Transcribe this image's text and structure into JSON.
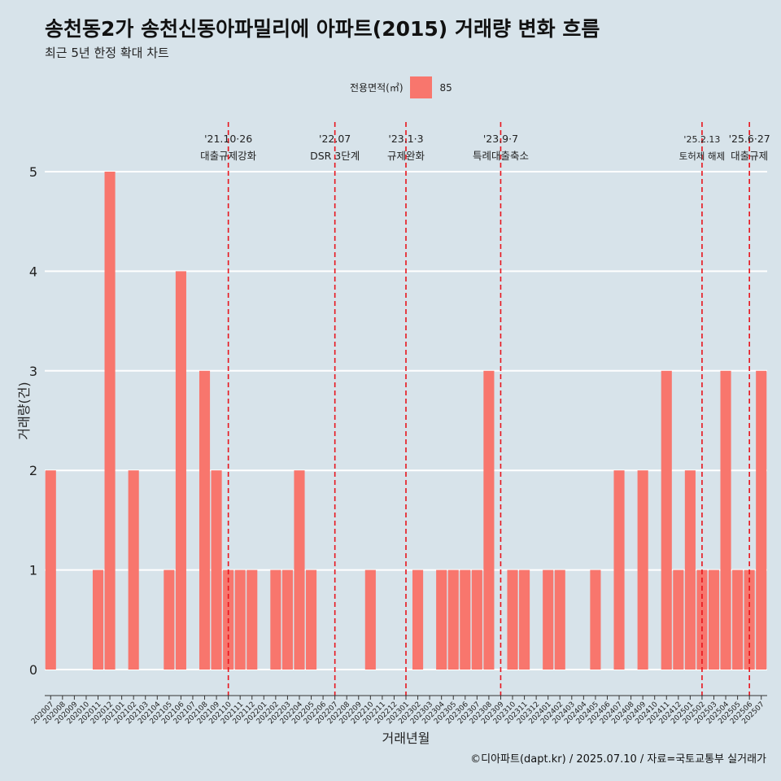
{
  "title": "송천동2가 송천신동아파밀리에 아파트(2015) 거래량 변화 흐름",
  "subtitle": "최근 5년 한정 확대 차트",
  "legend": {
    "title": "전용면적(㎡)",
    "items": [
      {
        "label": "85",
        "color": "#f8766d"
      }
    ]
  },
  "footer": "©디아파트(dapt.kr) / 2025.07.10 / 자료=국토교통부 실거래가",
  "chart_data": {
    "type": "bar",
    "xlabel": "거래년월",
    "ylabel": "거래량(건)",
    "ylim": [
      0,
      5
    ],
    "yticks": [
      0,
      1,
      2,
      3,
      4,
      5
    ],
    "bar_color": "#f8766d",
    "categories": [
      "202007",
      "202008",
      "202009",
      "202010",
      "202011",
      "202012",
      "202101",
      "202102",
      "202103",
      "202104",
      "202105",
      "202106",
      "202107",
      "202108",
      "202109",
      "202110",
      "202111",
      "202112",
      "202201",
      "202202",
      "202203",
      "202204",
      "202205",
      "202206",
      "202207",
      "202208",
      "202209",
      "202210",
      "202211",
      "202212",
      "202301",
      "202302",
      "202303",
      "202304",
      "202305",
      "202306",
      "202307",
      "202308",
      "202309",
      "202310",
      "202311",
      "202312",
      "202401",
      "202402",
      "202403",
      "202404",
      "202405",
      "202406",
      "202407",
      "202408",
      "202409",
      "202410",
      "202411",
      "202412",
      "202501",
      "202502",
      "202503",
      "202504",
      "202505",
      "202506",
      "202507"
    ],
    "series": [
      {
        "name": "85",
        "values": [
          2,
          0,
          0,
          0,
          1,
          5,
          0,
          2,
          0,
          0,
          1,
          4,
          0,
          3,
          2,
          1,
          1,
          1,
          0,
          1,
          1,
          2,
          1,
          0,
          0,
          0,
          0,
          1,
          0,
          0,
          0,
          1,
          0,
          1,
          1,
          1,
          1,
          3,
          0,
          1,
          1,
          0,
          1,
          1,
          0,
          0,
          1,
          0,
          2,
          0,
          2,
          0,
          3,
          1,
          2,
          1,
          1,
          3,
          1,
          1,
          3
        ]
      }
    ],
    "annotations": [
      {
        "x": "202110",
        "date": "'21.10·26",
        "label": "대출규제강화"
      },
      {
        "x": "202207",
        "date": "'22.07",
        "label": "DSR 3단계"
      },
      {
        "x": "202301",
        "date": "'23.1·3",
        "label": "규제완화"
      },
      {
        "x": "202309",
        "date": "'23.9·7",
        "label": "특례대출축소"
      },
      {
        "x": "202502",
        "date": "'25.2.13",
        "label": "토허제 해제"
      },
      {
        "x": "202506",
        "date": "'25.6·27",
        "label": "대출규제"
      }
    ]
  }
}
